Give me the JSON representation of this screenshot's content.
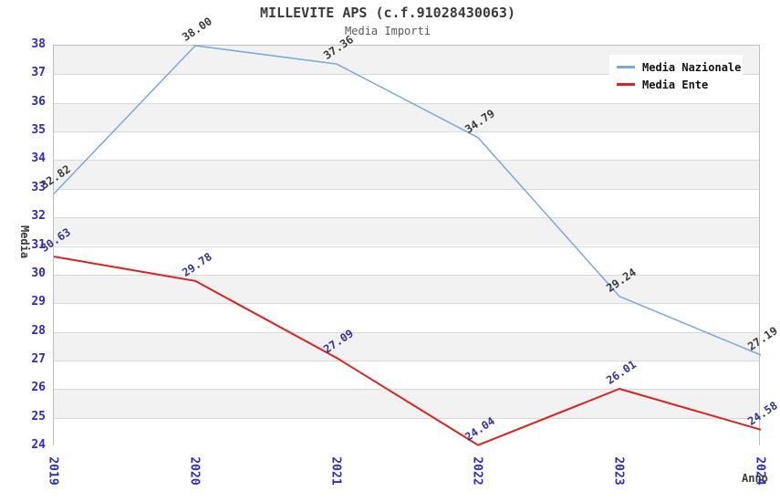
{
  "title": "MILLEVITE APS (c.f.91028430063)",
  "subtitle": "Media Importi",
  "y_axis_title": "Media",
  "x_axis_title": "Anno",
  "colors": {
    "national_line": "#7aa9db",
    "entity_line": "#dd2222",
    "tick_label_blue": "#2a2ace",
    "national_point_label": "#3a3a3a",
    "entity_point_label": "#333399",
    "band_gray": "#f2f2f2",
    "grid_line": "#d9d9d9",
    "plot_border": "#bfbfbf"
  },
  "legend": {
    "position": "top-right",
    "items": [
      {
        "label": "Media Nazionale",
        "color": "#7aa9db"
      },
      {
        "label": "Media Ente",
        "color": "#dd2222"
      }
    ]
  },
  "chart_data": {
    "type": "line",
    "title": "MILLEVITE APS (c.f.91028430063)",
    "subtitle": "Media Importi",
    "xlabel": "Anno",
    "ylabel": "Media",
    "x": [
      "2019",
      "2020",
      "2021",
      "2022",
      "2023",
      "2024"
    ],
    "series": [
      {
        "name": "Media Nazionale",
        "color": "#7aa9db",
        "label_color": "#3a3a3a",
        "values": [
          32.82,
          38.0,
          37.36,
          34.79,
          29.24,
          27.19
        ]
      },
      {
        "name": "Media Ente",
        "color": "#dd2222",
        "label_color": "#333399",
        "values": [
          30.63,
          29.78,
          27.09,
          24.04,
          26.01,
          24.58
        ]
      }
    ],
    "ylim": [
      24,
      38
    ],
    "y_ticks": [
      38,
      37,
      36,
      35,
      34,
      33,
      32,
      31,
      30,
      29,
      28,
      27,
      26,
      25,
      24
    ],
    "y_tick_step": 1,
    "grid": "horizontal alternating bands, gridline at every integer",
    "legend_position": "top-right inside plot",
    "point_label_format": "2 decimals, rotated"
  }
}
